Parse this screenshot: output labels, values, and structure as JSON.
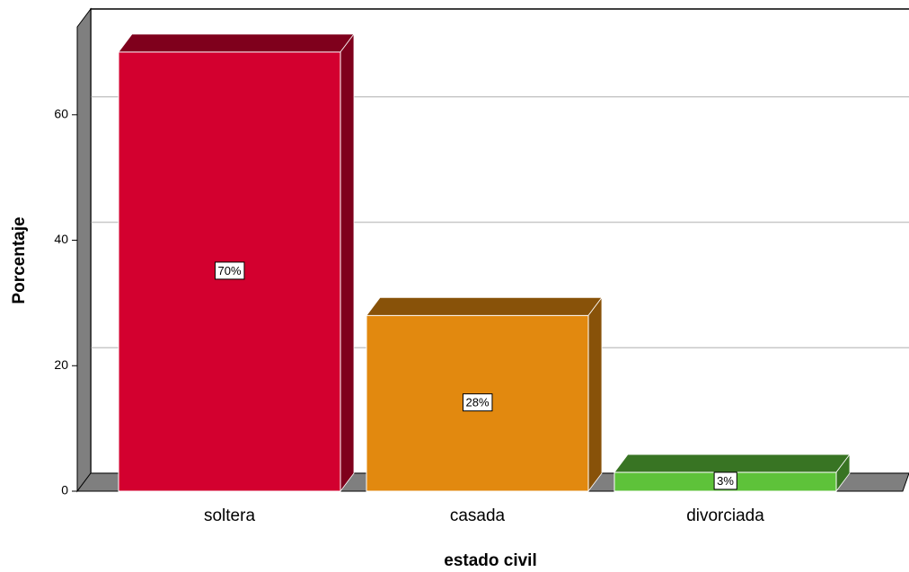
{
  "chart_data": {
    "type": "bar3d",
    "categories": [
      "soltera",
      "casada",
      "divorciada"
    ],
    "values": [
      70,
      28,
      3
    ],
    "value_labels": [
      "70%",
      "28%",
      "3%"
    ],
    "colors": [
      "#d3002f",
      "#e2890f",
      "#5ec23a"
    ],
    "ylabel": "Porcentaje",
    "xlabel": "estado civil",
    "ylim": [
      0,
      74
    ],
    "yticks": [
      0,
      20,
      40,
      60
    ],
    "grid": true
  }
}
